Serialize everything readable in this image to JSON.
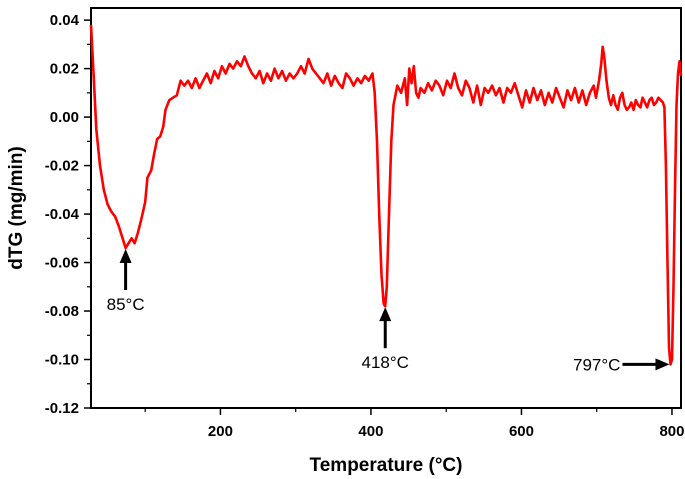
{
  "chart_data": {
    "type": "line",
    "xlabel": "Temperature (°C)",
    "ylabel": "dTG (mg/min)",
    "xlim": [
      28,
      812
    ],
    "ylim": [
      -0.12,
      0.045
    ],
    "x_ticks": [
      200,
      400,
      600,
      800
    ],
    "x_tick_labels": [
      "200",
      "400",
      "600",
      "800"
    ],
    "y_ticks": [
      -0.12,
      -0.1,
      -0.08,
      -0.06,
      -0.04,
      -0.02,
      0.0,
      0.02,
      0.04
    ],
    "y_tick_labels": [
      "-0.12",
      "-0.10",
      "-0.08",
      "-0.06",
      "-0.04",
      "-0.02",
      "0.00",
      "0.02",
      "0.04"
    ],
    "grid": false,
    "line_color": "#ff0000",
    "series": [
      {
        "points": [
          [
            28,
            0.038
          ],
          [
            31,
            0.02
          ],
          [
            35,
            -0.005
          ],
          [
            40,
            -0.02
          ],
          [
            45,
            -0.03
          ],
          [
            50,
            -0.036
          ],
          [
            55,
            -0.039
          ],
          [
            60,
            -0.041
          ],
          [
            65,
            -0.045
          ],
          [
            70,
            -0.05
          ],
          [
            74,
            -0.054
          ],
          [
            78,
            -0.052
          ],
          [
            82,
            -0.05
          ],
          [
            86,
            -0.052
          ],
          [
            90,
            -0.048
          ],
          [
            95,
            -0.042
          ],
          [
            100,
            -0.035
          ],
          [
            103,
            -0.025
          ],
          [
            108,
            -0.022
          ],
          [
            112,
            -0.015
          ],
          [
            116,
            -0.009
          ],
          [
            120,
            -0.008
          ],
          [
            124,
            -0.004
          ],
          [
            127,
            0.003
          ],
          [
            132,
            0.007
          ],
          [
            137,
            0.008
          ],
          [
            142,
            0.009
          ],
          [
            147,
            0.015
          ],
          [
            152,
            0.013
          ],
          [
            157,
            0.015
          ],
          [
            162,
            0.012
          ],
          [
            167,
            0.016
          ],
          [
            172,
            0.012
          ],
          [
            177,
            0.015
          ],
          [
            182,
            0.018
          ],
          [
            187,
            0.014
          ],
          [
            192,
            0.019
          ],
          [
            197,
            0.016
          ],
          [
            202,
            0.021
          ],
          [
            207,
            0.018
          ],
          [
            212,
            0.022
          ],
          [
            217,
            0.02
          ],
          [
            222,
            0.023
          ],
          [
            227,
            0.021
          ],
          [
            232,
            0.025
          ],
          [
            237,
            0.021
          ],
          [
            242,
            0.018
          ],
          [
            247,
            0.016
          ],
          [
            252,
            0.019
          ],
          [
            257,
            0.014
          ],
          [
            262,
            0.018
          ],
          [
            267,
            0.015
          ],
          [
            272,
            0.02
          ],
          [
            277,
            0.016
          ],
          [
            282,
            0.019
          ],
          [
            287,
            0.015
          ],
          [
            292,
            0.018
          ],
          [
            297,
            0.016
          ],
          [
            302,
            0.018
          ],
          [
            307,
            0.021
          ],
          [
            312,
            0.018
          ],
          [
            317,
            0.024
          ],
          [
            322,
            0.02
          ],
          [
            327,
            0.018
          ],
          [
            332,
            0.016
          ],
          [
            337,
            0.014
          ],
          [
            342,
            0.018
          ],
          [
            347,
            0.013
          ],
          [
            352,
            0.017
          ],
          [
            357,
            0.014
          ],
          [
            362,
            0.012
          ],
          [
            367,
            0.018
          ],
          [
            372,
            0.016
          ],
          [
            377,
            0.013
          ],
          [
            382,
            0.016
          ],
          [
            387,
            0.014
          ],
          [
            392,
            0.017
          ],
          [
            397,
            0.015
          ],
          [
            402,
            0.018
          ],
          [
            405,
            0.01
          ],
          [
            408,
            -0.01
          ],
          [
            411,
            -0.04
          ],
          [
            414,
            -0.065
          ],
          [
            417,
            -0.077
          ],
          [
            419,
            -0.078
          ],
          [
            421,
            -0.07
          ],
          [
            424,
            -0.04
          ],
          [
            427,
            -0.01
          ],
          [
            430,
            0.005
          ],
          [
            435,
            0.013
          ],
          [
            440,
            0.01
          ],
          [
            445,
            0.016
          ],
          [
            448,
            0.005
          ],
          [
            451,
            0.02
          ],
          [
            454,
            0.014
          ],
          [
            457,
            0.021
          ],
          [
            460,
            0.01
          ],
          [
            463,
            0.008
          ],
          [
            466,
            0.012
          ],
          [
            471,
            0.01
          ],
          [
            476,
            0.014
          ],
          [
            481,
            0.011
          ],
          [
            486,
            0.015
          ],
          [
            491,
            0.013
          ],
          [
            496,
            0.009
          ],
          [
            501,
            0.015
          ],
          [
            506,
            0.012
          ],
          [
            511,
            0.018
          ],
          [
            516,
            0.012
          ],
          [
            521,
            0.009
          ],
          [
            526,
            0.015
          ],
          [
            531,
            0.012
          ],
          [
            536,
            0.006
          ],
          [
            541,
            0.013
          ],
          [
            546,
            0.005
          ],
          [
            551,
            0.012
          ],
          [
            556,
            0.01
          ],
          [
            561,
            0.013
          ],
          [
            566,
            0.009
          ],
          [
            571,
            0.012
          ],
          [
            576,
            0.006
          ],
          [
            581,
            0.012
          ],
          [
            586,
            0.01
          ],
          [
            591,
            0.014
          ],
          [
            596,
            0.009
          ],
          [
            601,
            0.004
          ],
          [
            606,
            0.011
          ],
          [
            611,
            0.006
          ],
          [
            616,
            0.012
          ],
          [
            621,
            0.007
          ],
          [
            626,
            0.011
          ],
          [
            631,
            0.005
          ],
          [
            636,
            0.01
          ],
          [
            641,
            0.006
          ],
          [
            646,
            0.012
          ],
          [
            651,
            0.008
          ],
          [
            656,
            0.004
          ],
          [
            661,
            0.011
          ],
          [
            666,
            0.007
          ],
          [
            671,
            0.012
          ],
          [
            676,
            0.006
          ],
          [
            681,
            0.011
          ],
          [
            686,
            0.005
          ],
          [
            691,
            0.01
          ],
          [
            696,
            0.013
          ],
          [
            699,
            0.008
          ],
          [
            703,
            0.015
          ],
          [
            706,
            0.022
          ],
          [
            708,
            0.029
          ],
          [
            710,
            0.025
          ],
          [
            713,
            0.015
          ],
          [
            716,
            0.008
          ],
          [
            719,
            0.005
          ],
          [
            722,
            0.009
          ],
          [
            725,
            0.005
          ],
          [
            728,
            0.003
          ],
          [
            731,
            0.008
          ],
          [
            734,
            0.01
          ],
          [
            737,
            0.005
          ],
          [
            740,
            0.003
          ],
          [
            743,
            0.004
          ],
          [
            746,
            0.006
          ],
          [
            749,
            0.003
          ],
          [
            752,
            0.007
          ],
          [
            755,
            0.005
          ],
          [
            758,
            0.004
          ],
          [
            761,
            0.008
          ],
          [
            764,
            0.006
          ],
          [
            767,
            0.004
          ],
          [
            770,
            0.007
          ],
          [
            773,
            0.008
          ],
          [
            776,
            0.005
          ],
          [
            779,
            0.006
          ],
          [
            782,
            0.008
          ],
          [
            785,
            0.007
          ],
          [
            788,
            0.006
          ],
          [
            790,
            0.004
          ],
          [
            792,
            -0.02
          ],
          [
            794,
            -0.06
          ],
          [
            796,
            -0.095
          ],
          [
            798,
            -0.102
          ],
          [
            800,
            -0.1
          ],
          [
            802,
            -0.07
          ],
          [
            804,
            -0.03
          ],
          [
            806,
            0.005
          ],
          [
            808,
            0.018
          ],
          [
            810,
            0.023
          ],
          [
            812,
            0.017
          ]
        ]
      }
    ],
    "annotations": [
      {
        "text": "85°C",
        "arrow_to": [
          74,
          -0.054
        ],
        "direction": "up"
      },
      {
        "text": "418°C",
        "arrow_to": [
          419,
          -0.078
        ],
        "direction": "up"
      },
      {
        "text": "797°C",
        "arrow_to": [
          798,
          -0.102
        ],
        "direction": "right"
      }
    ]
  }
}
